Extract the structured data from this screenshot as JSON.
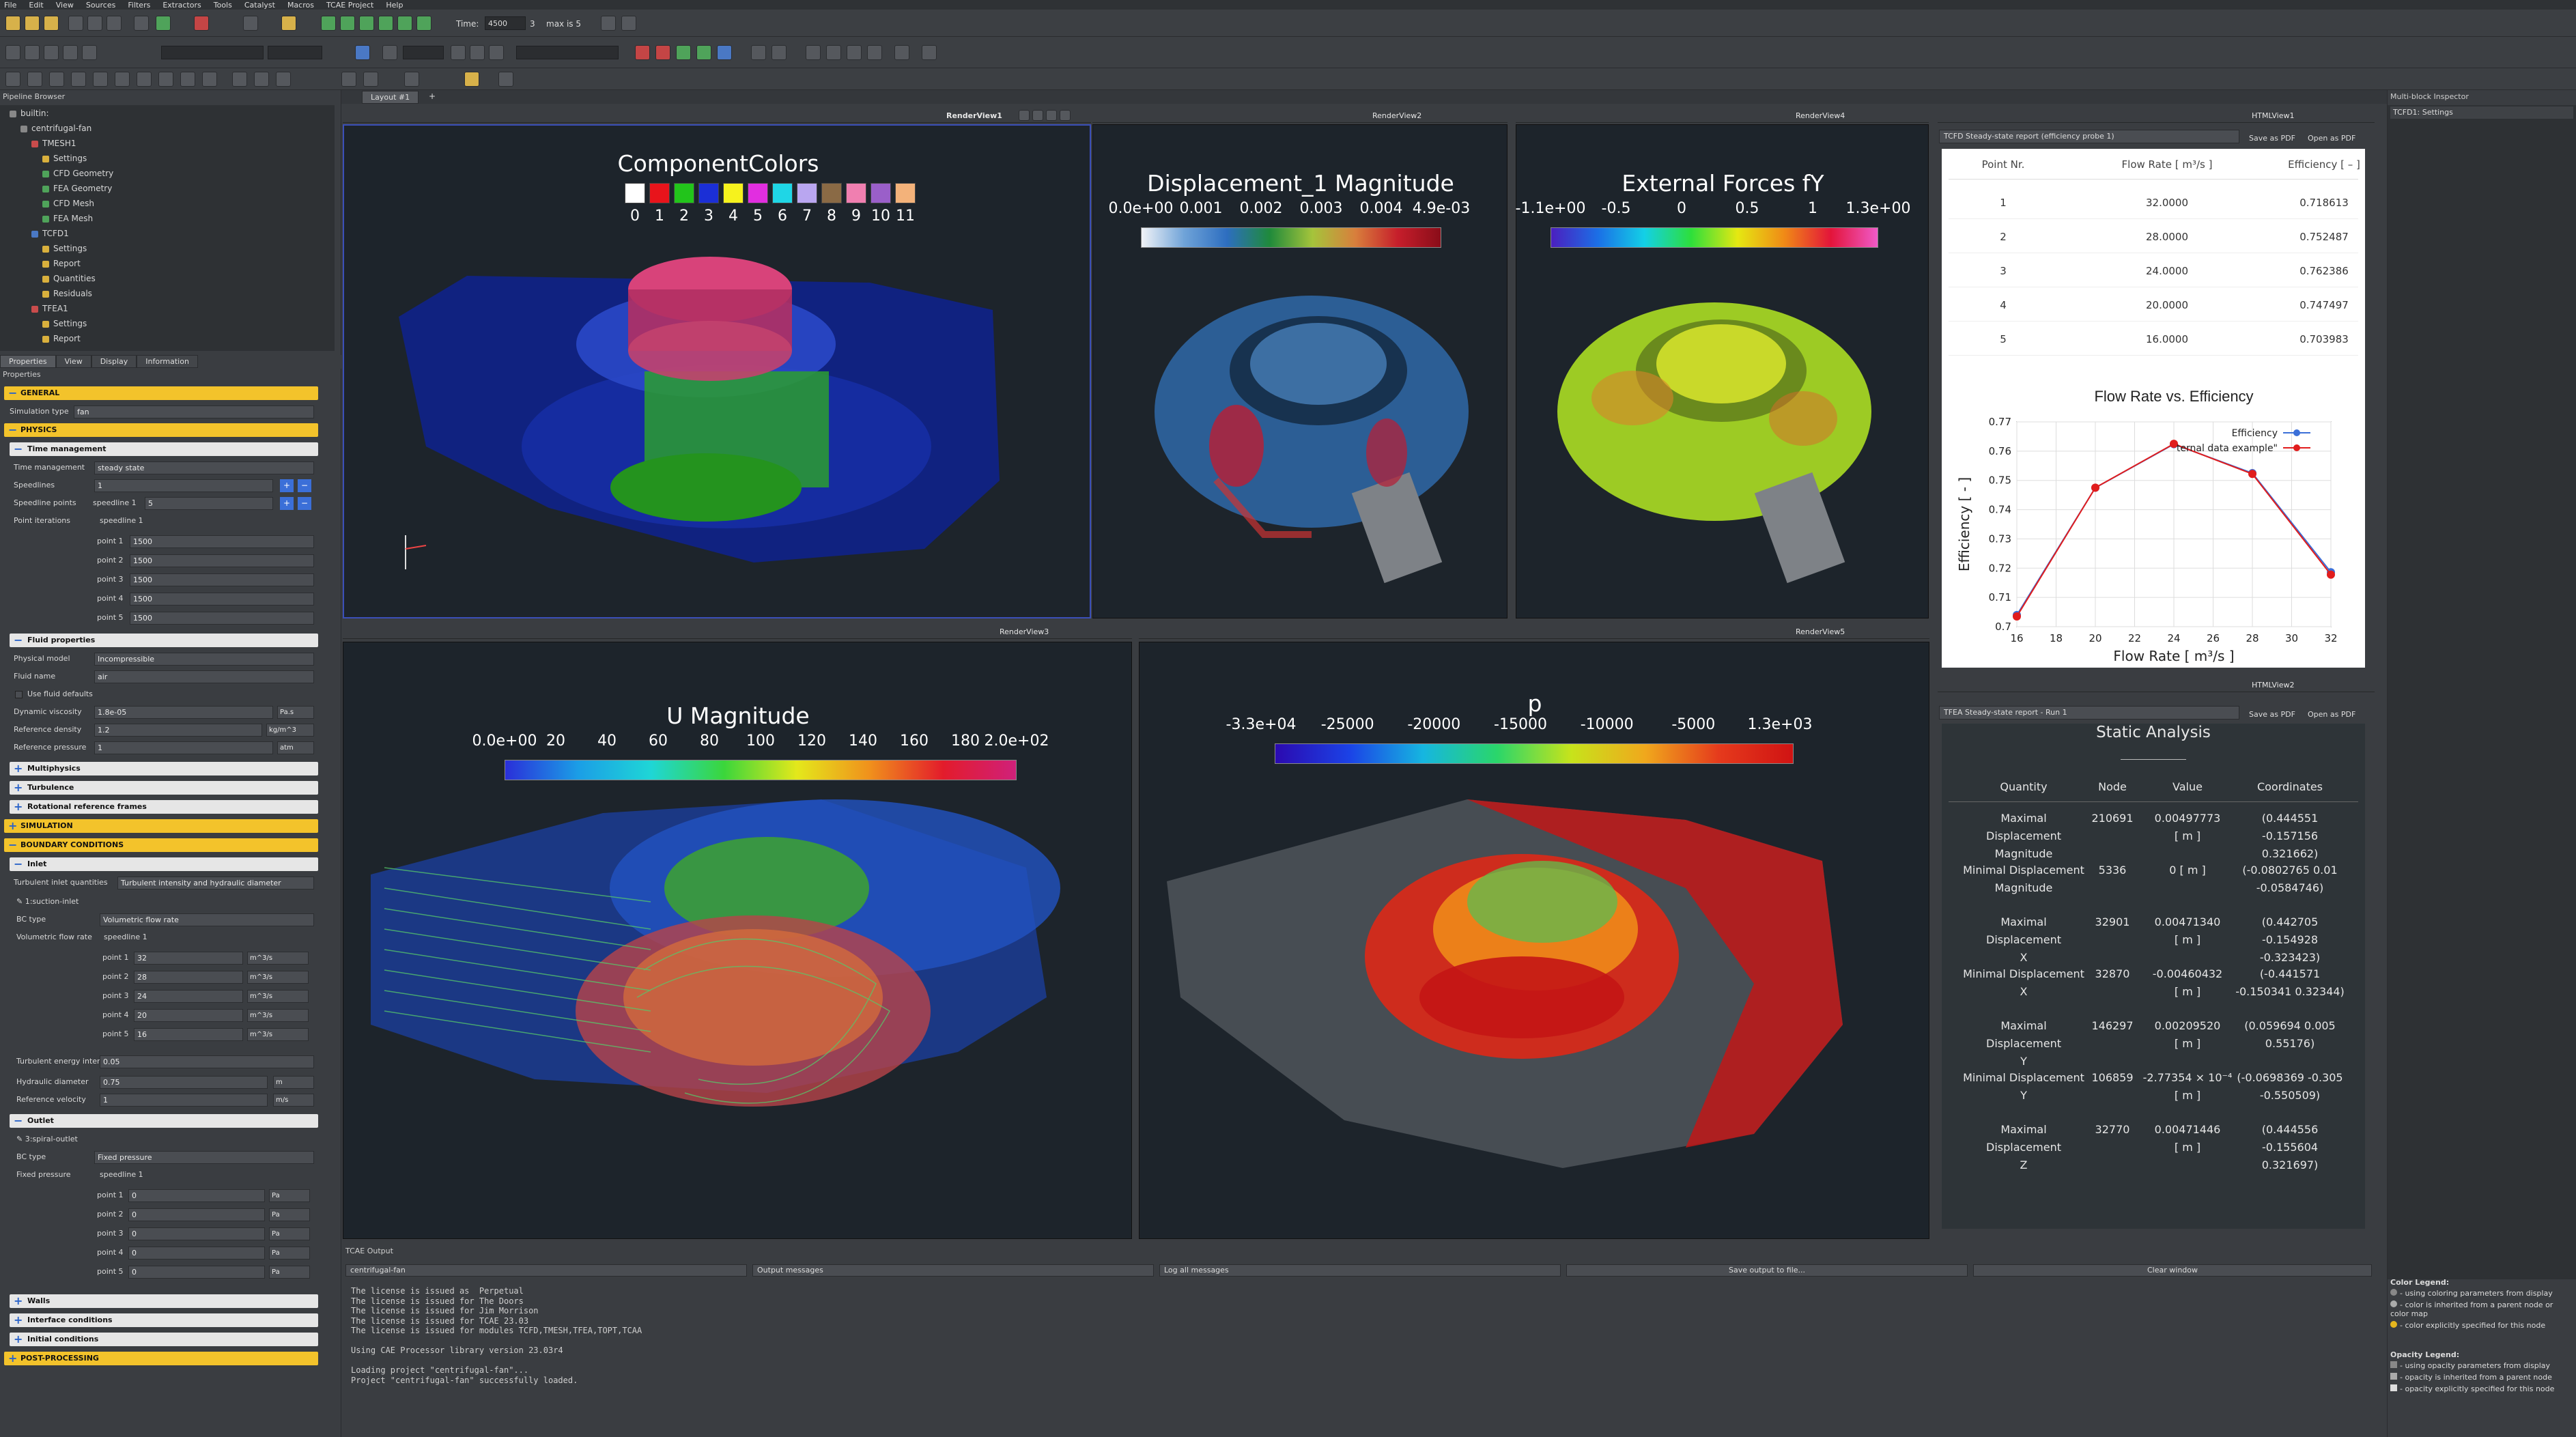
{
  "menu": [
    "File",
    "Edit",
    "View",
    "Sources",
    "Filters",
    "Extractors",
    "Tools",
    "Catalyst",
    "Macros",
    "TCAE Project",
    "Help"
  ],
  "toolbar": {
    "time_label": "Time:",
    "time_value": "4500",
    "frame_value": "3",
    "max_label": "max is 5"
  },
  "pipeline": {
    "title": "Pipeline Browser",
    "items": [
      {
        "label": "builtin:",
        "indent": 0,
        "color": "#888"
      },
      {
        "label": "centrifugal-fan",
        "indent": 1,
        "color": "#888"
      },
      {
        "label": "TMESH1",
        "indent": 2,
        "color": "#c94c4c"
      },
      {
        "label": "Settings",
        "indent": 3,
        "color": "#d9b03d"
      },
      {
        "label": "CFD Geometry",
        "indent": 3,
        "color": "#4fa35a"
      },
      {
        "label": "FEA Geometry",
        "indent": 3,
        "color": "#4fa35a"
      },
      {
        "label": "CFD Mesh",
        "indent": 3,
        "color": "#4fa35a"
      },
      {
        "label": "FEA Mesh",
        "indent": 3,
        "color": "#4fa35a"
      },
      {
        "label": "TCFD1",
        "indent": 2,
        "color": "#4a78c4"
      },
      {
        "label": "Settings",
        "indent": 3,
        "color": "#d9b03d"
      },
      {
        "label": "Report",
        "indent": 3,
        "color": "#d9b03d"
      },
      {
        "label": "Quantities",
        "indent": 3,
        "color": "#d9b03d"
      },
      {
        "label": "Residuals",
        "indent": 3,
        "color": "#d9b03d"
      },
      {
        "label": "TFEA1",
        "indent": 2,
        "color": "#c94c4c"
      },
      {
        "label": "Settings",
        "indent": 3,
        "color": "#d9b03d"
      },
      {
        "label": "Report",
        "indent": 3,
        "color": "#d9b03d"
      }
    ]
  },
  "prop_tabs": [
    "Properties",
    "View",
    "Display",
    "Information"
  ],
  "properties": {
    "header": "Properties",
    "general": "GENERAL",
    "sim_type_label": "Simulation type",
    "sim_type": "fan",
    "physics": "PHYSICS",
    "time_mgmt": "Time management",
    "time_mgmt_label": "Time management",
    "time_mgmt_value": "steady state",
    "speedlines_label": "Speedlines",
    "speedlines_value": "1",
    "speedline_points_label": "Speedline points",
    "speedline1_label": "speedline 1",
    "speedline1_value": "5",
    "point_iter_label": "Point iterations",
    "point_iter_speedline": "speedline 1",
    "point_iters": [
      {
        "l": "point 1",
        "v": "1500"
      },
      {
        "l": "point 2",
        "v": "1500"
      },
      {
        "l": "point 3",
        "v": "1500"
      },
      {
        "l": "point 4",
        "v": "1500"
      },
      {
        "l": "point 5",
        "v": "1500"
      }
    ],
    "fluid_props": "Fluid properties",
    "phys_model_label": "Physical model",
    "phys_model": "Incompressible",
    "fluid_name_label": "Fluid name",
    "fluid_name": "air",
    "use_defaults": "Use fluid defaults",
    "dyn_visc_label": "Dynamic viscosity",
    "dyn_visc": "1.8e-05",
    "dyn_visc_unit": "Pa.s",
    "ref_density_label": "Reference density",
    "ref_density": "1.2",
    "ref_density_unit": "kg/m^3",
    "ref_pressure_label": "Reference pressure",
    "ref_pressure": "1",
    "ref_pressure_unit": "atm",
    "multiphysics": "Multiphysics",
    "turbulence": "Turbulence",
    "rot_frames": "Rotational reference frames",
    "simulation": "SIMULATION",
    "boundary": "BOUNDARY CONDITIONS",
    "inlet": "Inlet",
    "turb_inlet_label": "Turbulent inlet quantities",
    "turb_inlet": "Turbulent intensity and hydraulic diameter",
    "suction_inlet": "1:suction-inlet",
    "bc_type_label": "BC type",
    "bc_type_inlet": "Volumetric flow rate",
    "vol_flow_label": "Volumetric flow rate",
    "vol_speedline": "speedline 1",
    "vol_points": [
      {
        "l": "point 1",
        "v": "32",
        "u": "m^3/s"
      },
      {
        "l": "point 2",
        "v": "28",
        "u": "m^3/s"
      },
      {
        "l": "point 3",
        "v": "24",
        "u": "m^3/s"
      },
      {
        "l": "point 4",
        "v": "20",
        "u": "m^3/s"
      },
      {
        "l": "point 5",
        "v": "16",
        "u": "m^3/s"
      }
    ],
    "turb_energy_label": "Turbulent energy intensity",
    "turb_energy": "0.05",
    "hyd_diam_label": "Hydraulic diameter",
    "hyd_diam": "0.75",
    "hyd_diam_unit": "m",
    "ref_vel_label": "Reference velocity",
    "ref_vel": "1",
    "ref_vel_unit": "m/s",
    "outlet": "Outlet",
    "spiral_outlet": "3:spiral-outlet",
    "bc_type_outlet": "Fixed pressure",
    "fixed_pressure_label": "Fixed pressure",
    "fp_speedline": "speedline 1",
    "fp_points": [
      {
        "l": "point 1",
        "v": "0",
        "u": "Pa"
      },
      {
        "l": "point 2",
        "v": "0",
        "u": "Pa"
      },
      {
        "l": "point 3",
        "v": "0",
        "u": "Pa"
      },
      {
        "l": "point 4",
        "v": "0",
        "u": "Pa"
      },
      {
        "l": "point 5",
        "v": "0",
        "u": "Pa"
      }
    ],
    "walls": "Walls",
    "interface": "Interface conditions",
    "initial": "Initial conditions",
    "post": "POST-PROCESSING"
  },
  "layout_tab": "Layout #1",
  "views": {
    "rv1": {
      "name": "RenderView1",
      "title": "ComponentColors",
      "labels": [
        "0",
        "1",
        "2",
        "3",
        "4",
        "5",
        "6",
        "7",
        "8",
        "9",
        "10",
        "11"
      ],
      "swatches": [
        "#ffffff",
        "#e8141b",
        "#22c41b",
        "#1b2fd6",
        "#f6f21d",
        "#e12ee0",
        "#1fd6e6",
        "#b9a6f0",
        "#8a6a45",
        "#f07fb0",
        "#9a5fc9",
        "#f3b27a"
      ]
    },
    "rv2": {
      "name": "RenderView2",
      "title": "Displacement_1 Magnitude",
      "ticks": [
        "0.0e+00",
        "0.001",
        "0.002",
        "0.003",
        "0.004",
        "4.9e-03"
      ]
    },
    "rv4": {
      "name": "RenderView4",
      "title": "External Forces fY",
      "ticks": [
        "-1.1e+00",
        "-0.5",
        "0",
        "0.5",
        "1",
        "1.3e+00"
      ]
    },
    "rv3": {
      "name": "RenderView3",
      "title": "U Magnitude",
      "ticks": [
        "0.0e+00",
        "20",
        "40",
        "60",
        "80",
        "100",
        "120",
        "140",
        "160",
        "180",
        "2.0e+02"
      ]
    },
    "rv5": {
      "name": "RenderView5",
      "title": "p",
      "ticks": [
        "-3.3e+04",
        "-25000",
        "-20000",
        "-15000",
        "-10000",
        "-5000",
        "1.3e+03"
      ]
    }
  },
  "html1": {
    "name": "HTMLView1",
    "source": "TCFD Steady-state report (efficiency probe 1)",
    "save": "Save as PDF",
    "open": "Open as PDF",
    "headers": [
      "Point Nr.",
      "Flow Rate [ m³/s ]",
      "Efficiency [ – ]"
    ],
    "rows": [
      [
        "1",
        "32.0000",
        "0.718613"
      ],
      [
        "2",
        "28.0000",
        "0.752487"
      ],
      [
        "3",
        "24.0000",
        "0.762386"
      ],
      [
        "4",
        "20.0000",
        "0.747497"
      ],
      [
        "5",
        "16.0000",
        "0.703983"
      ]
    ]
  },
  "chart_data": {
    "type": "line",
    "title": "Flow Rate  vs. Efficiency",
    "xlabel": "Flow Rate [ m³/s ]",
    "ylabel": "Efficiency [ - ]",
    "xlim": [
      16,
      32
    ],
    "ylim": [
      0.7,
      0.77
    ],
    "xticks": [
      "16",
      "18",
      "20",
      "22",
      "24",
      "26",
      "28",
      "30",
      "32"
    ],
    "yticks": [
      "0.7",
      "0.71",
      "0.72",
      "0.73",
      "0.74",
      "0.75",
      "0.76",
      "0.77"
    ],
    "legend": "top-right",
    "series": [
      {
        "name": "Efficiency",
        "color": "#3b6fd8",
        "x": [
          16,
          20,
          24,
          28,
          32
        ],
        "y": [
          0.703983,
          0.747497,
          0.762386,
          0.752487,
          0.718613
        ]
      },
      {
        "name": "ternal data example\"",
        "color": "#e11d1d",
        "x": [
          16,
          20,
          24,
          28,
          32
        ],
        "y": [
          0.7035,
          0.7475,
          0.7625,
          0.7522,
          0.7178
        ]
      }
    ]
  },
  "html2": {
    "name": "HTMLView2",
    "source": "TFEA Steady-state report - Run 1",
    "save": "Save as PDF",
    "open": "Open as PDF",
    "title": "Static Analysis",
    "headers": [
      "Quantity",
      "Node",
      "Value",
      "Coordinates"
    ],
    "rows": [
      [
        "Maximal Displacement\nMagnitude",
        "210691",
        "0.00497773\n[ m ]",
        "(0.444551\n-0.157156\n0.321662)"
      ],
      [
        "Minimal Displacement\nMagnitude",
        "5336",
        "0 [ m ]",
        "(-0.0802765 0.01\n-0.0584746)"
      ],
      [
        "Maximal Displacement\nX",
        "32901",
        "0.00471340\n[ m ]",
        "(0.442705\n-0.154928\n-0.323423)"
      ],
      [
        "Minimal Displacement\nX",
        "32870",
        "-0.00460432\n[ m ]",
        "(-0.441571\n-0.150341 0.32344)"
      ],
      [
        "Maximal Displacement\nY",
        "146297",
        "0.00209520\n[ m ]",
        "(0.059694 0.005\n0.55176)"
      ],
      [
        "Minimal Displacement\nY",
        "106859",
        "-2.77354 × 10⁻⁴\n[ m ]",
        "(-0.0698369 -0.305\n-0.550509)"
      ],
      [
        "Maximal Displacement\nZ",
        "32770",
        "0.00471446\n[ m ]",
        "(0.444556\n-0.155604\n0.321697)"
      ]
    ]
  },
  "inspector": {
    "title": "Multi-block Inspector",
    "node": "TCFD1: Settings",
    "color_legend_title": "Color Legend:",
    "color_legend": [
      "- using coloring parameters from display",
      "- color is inherited from a parent node or color map",
      "- color explicitly specified for this node"
    ],
    "opacity_legend_title": "Opacity Legend:",
    "opacity_legend": [
      "- using opacity parameters from display",
      "- opacity is inherited from a parent node",
      "- opacity explicitly specified for this node"
    ]
  },
  "output": {
    "title": "TCAE Output",
    "project": "centrifugal-fan",
    "messages": "Output messages",
    "log": "Log all messages",
    "save": "Save output to file...",
    "clear": "Clear window",
    "lines": [
      "The license is issued as  Perpetual",
      "The license is issued for The Doors",
      "The license is issued for Jim Morrison",
      "The license is issued for TCAE 23.03",
      "The license is issued for modules TCFD,TMESH,TFEA,TOPT,TCAA",
      "",
      "Using CAE Processor library version 23.03r4",
      "",
      "Loading project \"centrifugal-fan\"...",
      "Project \"centrifugal-fan\" successfully loaded."
    ]
  }
}
